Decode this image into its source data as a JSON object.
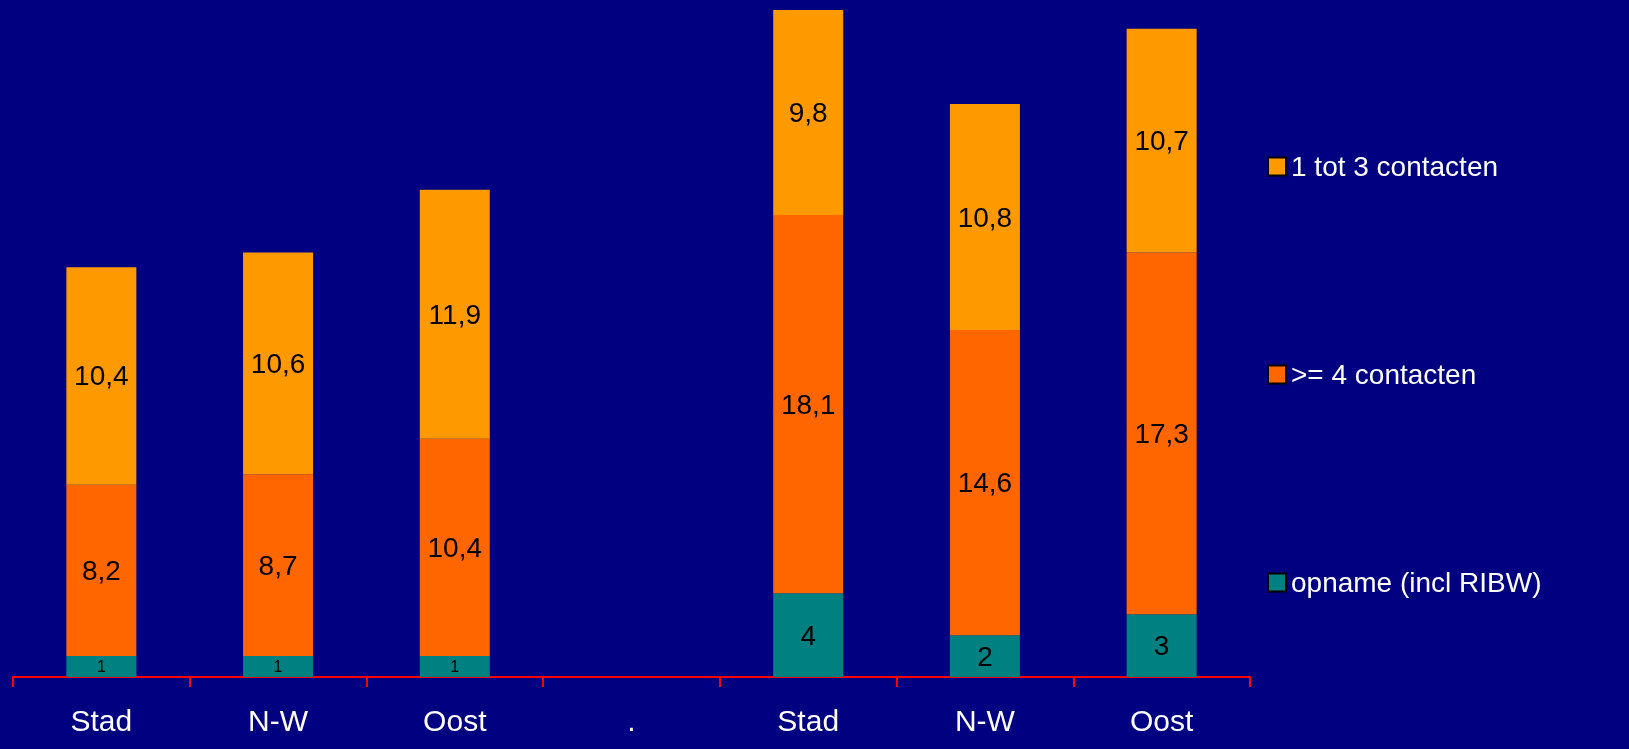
{
  "chart_data": {
    "type": "bar",
    "stacked": true,
    "categories": [
      "Stad",
      "N-W",
      "Oost",
      ".",
      "Stad",
      "N-W",
      "Oost"
    ],
    "series": [
      {
        "name": "opname (incl RIBW)",
        "color": "#008080",
        "values": [
          1,
          1,
          1,
          null,
          4,
          2,
          3
        ],
        "value_labels": [
          "1",
          "1",
          "1",
          null,
          "4",
          "2",
          "3"
        ]
      },
      {
        "name": ">= 4 contacten",
        "color": "#ff6600",
        "values": [
          8.2,
          8.7,
          10.4,
          null,
          18.1,
          14.6,
          17.3
        ],
        "value_labels": [
          "8,2",
          "8,7",
          "10,4",
          null,
          "18,1",
          "14,6",
          "17,3"
        ]
      },
      {
        "name": "1 tot 3 contacten",
        "color": "#ff9900",
        "values": [
          10.4,
          10.6,
          11.9,
          null,
          9.8,
          10.8,
          10.7
        ],
        "value_labels": [
          "10,4",
          "10,6",
          "11,9",
          null,
          "9,8",
          "10,8",
          "10,7"
        ]
      }
    ],
    "legend": "right"
  }
}
